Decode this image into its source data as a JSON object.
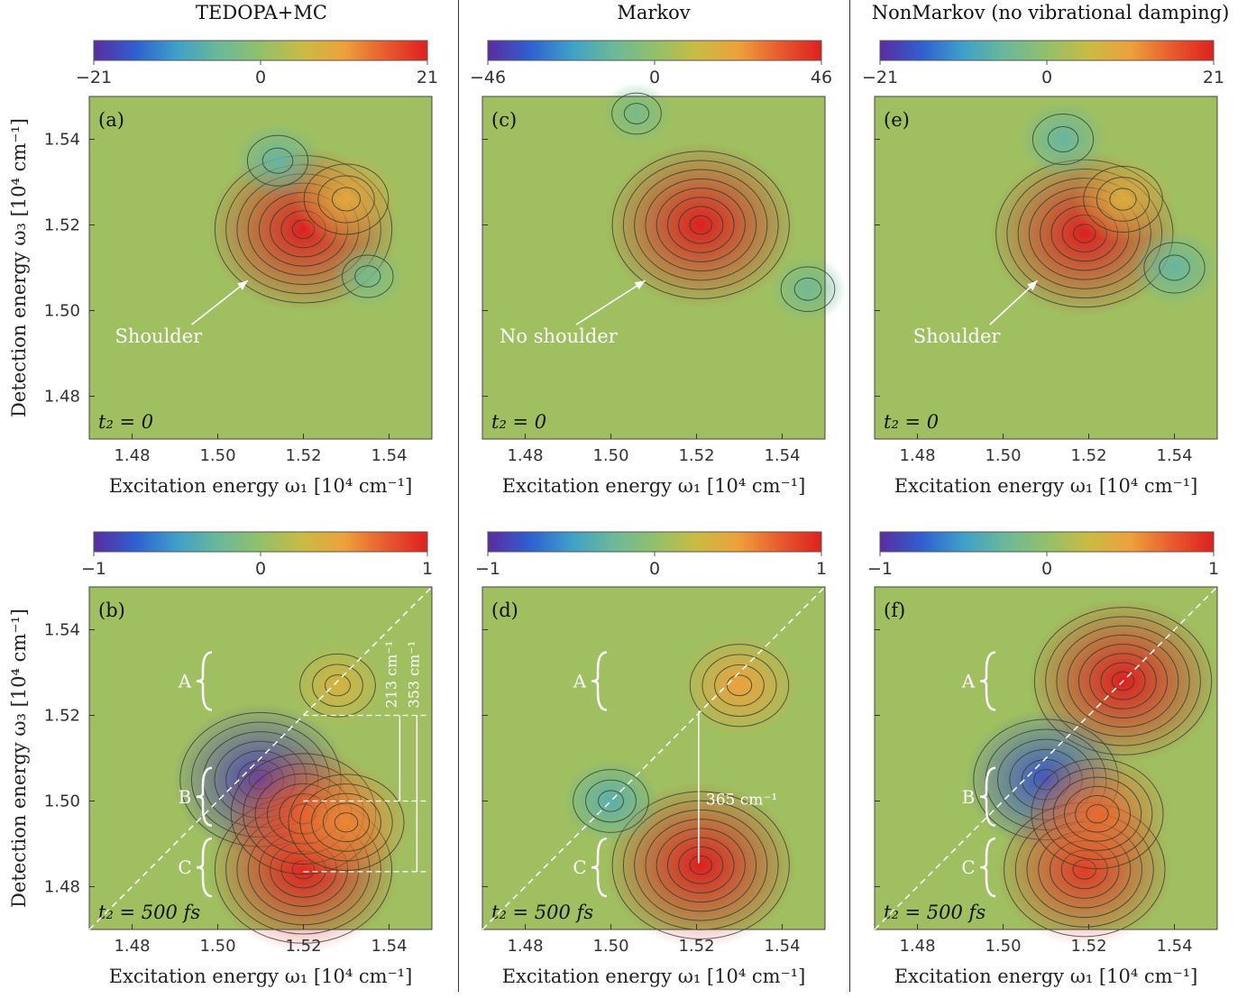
{
  "columns": [
    {
      "title": "TEDOPA+MC"
    },
    {
      "title": "Markov"
    },
    {
      "title": "NonMarkov (no vibrational damping)"
    }
  ],
  "axes": {
    "xlabel": "Excitation energy ω₁ [10⁴ cm⁻¹]",
    "ylabel": "Detection energy ω₃ [10⁴ cm⁻¹]",
    "xticks": [
      "1.48",
      "1.50",
      "1.52",
      "1.54"
    ],
    "yticks": [
      "1.54",
      "1.52",
      "1.50",
      "1.48"
    ]
  },
  "colors": {
    "cmap": [
      "#5a2ca0",
      "#2f5fd0",
      "#3fa0c8",
      "#6cb89a",
      "#92c06a",
      "#c9bb44",
      "#eda13c",
      "#e85b2e",
      "#dd2020"
    ],
    "contour": "#2a3a2a",
    "annotation": "#ffffff"
  },
  "chart_data": [
    {
      "type": "heatmap",
      "panel": "(a)",
      "time": "t₂ = 0",
      "colorbar": {
        "min": "−21",
        "mid": "0",
        "max": "21"
      },
      "xlim": [
        1.47,
        1.55
      ],
      "ylim": [
        1.47,
        1.55
      ],
      "peaks": [
        {
          "x": 1.52,
          "y": 1.519,
          "amp": 21
        },
        {
          "x": 1.53,
          "y": 1.526,
          "amp": 9
        },
        {
          "x": 1.514,
          "y": 1.535,
          "amp": -6
        },
        {
          "x": 1.535,
          "y": 1.508,
          "amp": -4
        }
      ],
      "annotations": [
        {
          "text": "Shoulder",
          "x": 1.476,
          "y": 1.4925,
          "arrow_to": [
            1.507,
            1.507
          ]
        }
      ]
    },
    {
      "type": "heatmap",
      "panel": "(b)",
      "time": "t₂ = 500 fs",
      "colorbar": {
        "min": "−1",
        "mid": "0",
        "max": "1"
      },
      "xlim": [
        1.47,
        1.55
      ],
      "ylim": [
        1.47,
        1.55
      ],
      "peaks": [
        {
          "x": 1.51,
          "y": 1.505,
          "amp": -0.9
        },
        {
          "x": 1.52,
          "y": 1.484,
          "amp": 1.0
        },
        {
          "x": 1.52,
          "y": 1.497,
          "amp": 0.8
        },
        {
          "x": 1.53,
          "y": 1.495,
          "amp": 0.6
        },
        {
          "x": 1.528,
          "y": 1.527,
          "amp": 0.35
        }
      ],
      "labels": [
        "A",
        "B",
        "C"
      ],
      "annotations": [
        {
          "text": "213 cm⁻¹"
        },
        {
          "text": "353 cm⁻¹"
        }
      ]
    },
    {
      "type": "heatmap",
      "panel": "(c)",
      "time": "t₂ = 0",
      "colorbar": {
        "min": "−46",
        "mid": "0",
        "max": "46"
      },
      "xlim": [
        1.47,
        1.55
      ],
      "ylim": [
        1.47,
        1.55
      ],
      "peaks": [
        {
          "x": 1.521,
          "y": 1.52,
          "amp": 46
        },
        {
          "x": 1.546,
          "y": 1.505,
          "amp": -10
        },
        {
          "x": 1.506,
          "y": 1.546,
          "amp": -8
        }
      ],
      "annotations": [
        {
          "text": "No shoulder",
          "x": 1.474,
          "y": 1.4925,
          "arrow_to": [
            1.508,
            1.507
          ]
        }
      ]
    },
    {
      "type": "heatmap",
      "panel": "(d)",
      "time": "t₂ = 500 fs",
      "colorbar": {
        "min": "−1",
        "mid": "0",
        "max": "1"
      },
      "xlim": [
        1.47,
        1.55
      ],
      "ylim": [
        1.47,
        1.55
      ],
      "peaks": [
        {
          "x": 1.521,
          "y": 1.485,
          "amp": 1.0
        },
        {
          "x": 1.53,
          "y": 1.527,
          "amp": 0.5
        },
        {
          "x": 1.5,
          "y": 1.5,
          "amp": -0.35
        }
      ],
      "labels": [
        "A",
        "C"
      ],
      "annotations": [
        {
          "text": "365 cm⁻¹"
        }
      ]
    },
    {
      "type": "heatmap",
      "panel": "(e)",
      "time": "t₂ = 0",
      "colorbar": {
        "min": "−21",
        "mid": "0",
        "max": "21"
      },
      "xlim": [
        1.47,
        1.55
      ],
      "ylim": [
        1.47,
        1.55
      ],
      "peaks": [
        {
          "x": 1.519,
          "y": 1.518,
          "amp": 21
        },
        {
          "x": 1.528,
          "y": 1.526,
          "amp": 8
        },
        {
          "x": 1.514,
          "y": 1.54,
          "amp": -6
        },
        {
          "x": 1.54,
          "y": 1.51,
          "amp": -6
        }
      ],
      "annotations": [
        {
          "text": "Shoulder",
          "x": 1.479,
          "y": 1.4925,
          "arrow_to": [
            1.508,
            1.507
          ]
        }
      ]
    },
    {
      "type": "heatmap",
      "panel": "(f)",
      "time": "t₂ = 500 fs",
      "colorbar": {
        "min": "−1",
        "mid": "0",
        "max": "1"
      },
      "xlim": [
        1.47,
        1.55
      ],
      "ylim": [
        1.47,
        1.55
      ],
      "peaks": [
        {
          "x": 1.528,
          "y": 1.528,
          "amp": 1.0
        },
        {
          "x": 1.51,
          "y": 1.505,
          "amp": -0.8
        },
        {
          "x": 1.519,
          "y": 1.484,
          "amp": 0.9
        },
        {
          "x": 1.522,
          "y": 1.497,
          "amp": 0.7
        }
      ],
      "labels": [
        "A",
        "B",
        "C"
      ]
    }
  ]
}
